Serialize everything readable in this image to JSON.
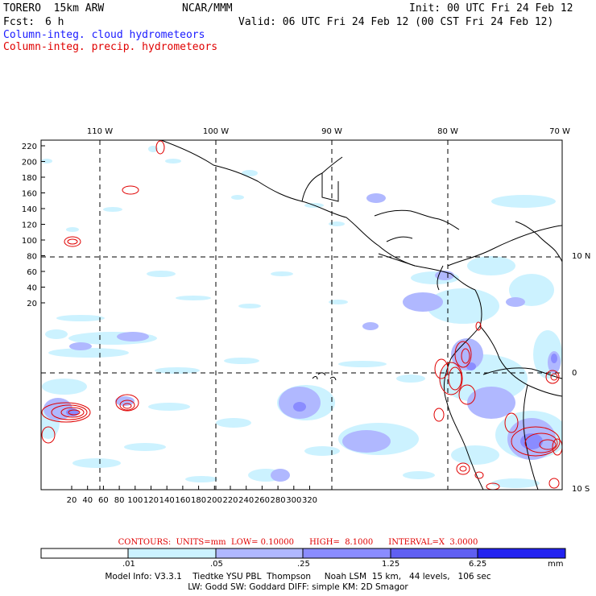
{
  "header": {
    "model": "TORERO  15km ARW",
    "org": "NCAR/MMM",
    "init": "Init: 00 UTC Fri 24 Feb 12",
    "fcst_label": "Fcst:",
    "fcst_value": "6 h",
    "valid": "Valid: 06 UTC Fri 24 Feb 12 (00 CST Fri 24 Feb 12)",
    "field1": "Column-integ. cloud hydrometeors",
    "field2": "Column-integ. precip. hydrometeors"
  },
  "colors": {
    "cloud_field": "#1a1aff",
    "precip_field": "#e00000",
    "shade_levels": [
      "#ffffff",
      "#ccf2ff",
      "#b0b8ff",
      "#8a8cff",
      "#5f5ff2",
      "#2222f0"
    ]
  },
  "map": {
    "lon_labels": [
      "110 W",
      "100 W",
      "90 W",
      "80 W",
      "70 W"
    ],
    "lat_labels": [
      "10 N",
      "0",
      "10 S"
    ],
    "y_ticks": [
      "220",
      "200",
      "180",
      "160",
      "140",
      "120",
      "100",
      "80",
      "60",
      "40",
      "20"
    ],
    "x_ticks": [
      "20",
      "40",
      "60",
      "80",
      "100",
      "120",
      "140",
      "160",
      "180",
      "200",
      "220",
      "240",
      "260",
      "280",
      "300",
      "320"
    ]
  },
  "contours": {
    "text": "CONTOURS:  UNITS=mm  LOW= 0.10000      HIGH=  8.1000      INTERVAL=X  3.0000"
  },
  "legend": {
    "labels": [
      ".01",
      ".05",
      ".25",
      "1.25",
      "6.25"
    ],
    "unit": "mm"
  },
  "footer": {
    "line1": "Model Info: V3.3.1    Tiedtke YSU PBL  Thompson     Noah LSM  15 km,   44 levels,   106 sec",
    "line2": "LW: Godd SW: Goddard DIFF: simple KM: 2D Smagor"
  }
}
